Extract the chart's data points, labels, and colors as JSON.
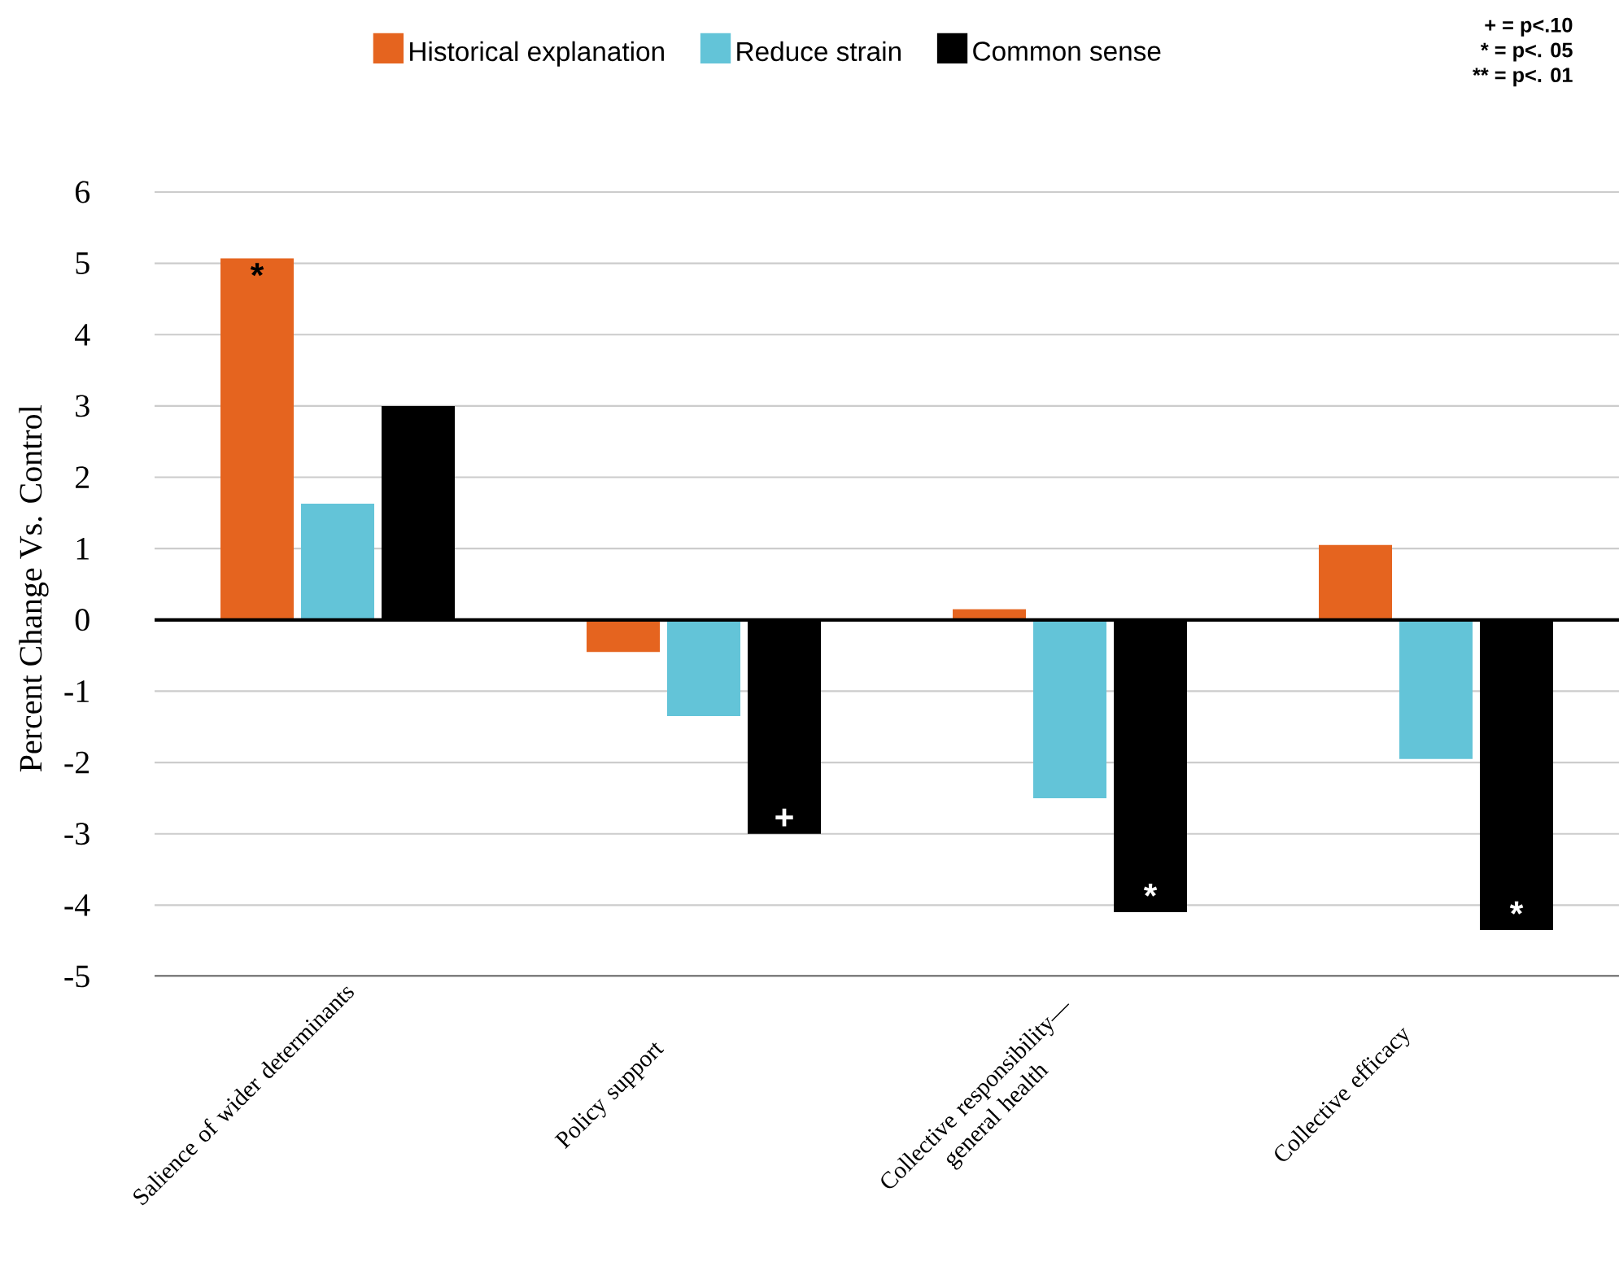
{
  "chart_data": {
    "type": "bar",
    "categories": [
      "Salience of wider determinants",
      "Policy support",
      "Collective responsibility—general health",
      "Collective efficacy"
    ],
    "series": [
      {
        "name": "Historical explanation",
        "color": "#e5641f",
        "values": [
          5.07,
          -0.45,
          0.15,
          1.05
        ],
        "value_labels": [
          "*",
          null,
          null,
          null
        ]
      },
      {
        "name": "Reduce strain",
        "color": "#63c4d8",
        "values": [
          1.63,
          -1.35,
          -2.5,
          -1.95
        ]
      },
      {
        "name": "Common sense",
        "color": "#000000",
        "values": [
          3.0,
          -3.0,
          -4.1,
          -4.35
        ],
        "value_labels": [
          null,
          "+",
          "*",
          "*"
        ]
      }
    ],
    "ylabel": "Percent Change Vs. Control",
    "ylim": [
      -5,
      6
    ],
    "yticks": [
      -5,
      -4,
      -3,
      -2,
      -1,
      0,
      1,
      2,
      3,
      4,
      5,
      6
    ],
    "grid": "y",
    "legend": "top",
    "annotations": [
      "+ = p<.10",
      "* = p<. 05",
      "** = p<. 01"
    ]
  }
}
